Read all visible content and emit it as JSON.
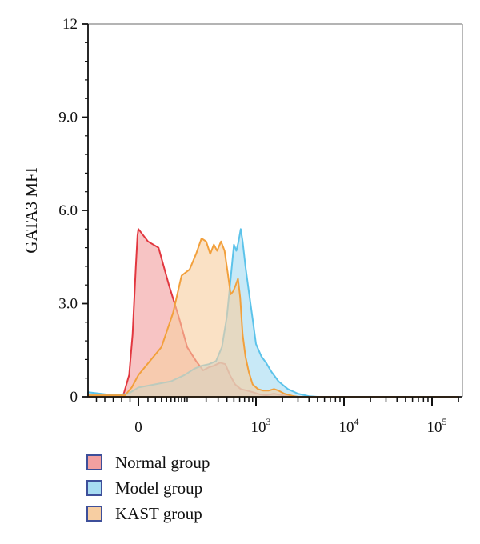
{
  "chart_data": {
    "type": "area",
    "title": "",
    "ylabel": "GATA3 MFI",
    "xlabel": "",
    "x_scale": "biexponential",
    "xlim": [
      -300,
      200000
    ],
    "ylim": [
      0,
      12
    ],
    "yticks": [
      {
        "value": 0,
        "label": "0"
      },
      {
        "value": 3,
        "label": "3.0"
      },
      {
        "value": 6,
        "label": "6.0"
      },
      {
        "value": 9,
        "label": "9.0"
      },
      {
        "value": 12,
        "label": "12"
      }
    ],
    "xticks": [
      {
        "value": 0,
        "base": "0",
        "exp": ""
      },
      {
        "value": 1000,
        "base": "10",
        "exp": "3"
      },
      {
        "value": 10000,
        "base": "10",
        "exp": "4"
      },
      {
        "value": 100000,
        "base": "10",
        "exp": "5"
      }
    ],
    "legend_position": "bottom-left",
    "series": [
      {
        "name": "Normal group",
        "fill": "#f2a0a0",
        "stroke": "#e2373f",
        "points": [
          [
            -300,
            0
          ],
          [
            -90,
            0.05
          ],
          [
            -55,
            0.7
          ],
          [
            -35,
            2.0
          ],
          [
            -15,
            4.2
          ],
          [
            -5,
            5.2
          ],
          [
            0,
            5.4
          ],
          [
            10,
            5.0
          ],
          [
            25,
            4.8
          ],
          [
            45,
            3.6
          ],
          [
            70,
            2.6
          ],
          [
            100,
            1.6
          ],
          [
            140,
            1.15
          ],
          [
            180,
            0.85
          ],
          [
            220,
            0.95
          ],
          [
            260,
            1.0
          ],
          [
            320,
            1.1
          ],
          [
            380,
            1.05
          ],
          [
            440,
            0.7
          ],
          [
            520,
            0.4
          ],
          [
            620,
            0.25
          ],
          [
            750,
            0.2
          ],
          [
            900,
            0.15
          ],
          [
            1100,
            0.08
          ],
          [
            1300,
            0.05
          ],
          [
            1600,
            0.1
          ],
          [
            1900,
            0.06
          ],
          [
            2300,
            0.02
          ],
          [
            3000,
            0.0
          ],
          [
            200000,
            0.0
          ]
        ]
      },
      {
        "name": "Model group",
        "fill": "#a7dcf2",
        "stroke": "#5cc3ea",
        "points": [
          [
            -300,
            0.15
          ],
          [
            -150,
            0.05
          ],
          [
            -60,
            0.1
          ],
          [
            0,
            0.3
          ],
          [
            50,
            0.5
          ],
          [
            90,
            0.7
          ],
          [
            130,
            0.9
          ],
          [
            170,
            1.0
          ],
          [
            220,
            1.05
          ],
          [
            280,
            1.15
          ],
          [
            340,
            1.6
          ],
          [
            400,
            2.6
          ],
          [
            450,
            3.8
          ],
          [
            500,
            4.9
          ],
          [
            540,
            4.7
          ],
          [
            580,
            5.0
          ],
          [
            620,
            5.4
          ],
          [
            660,
            5.0
          ],
          [
            720,
            4.2
          ],
          [
            800,
            3.4
          ],
          [
            900,
            2.5
          ],
          [
            1000,
            1.7
          ],
          [
            1150,
            1.3
          ],
          [
            1300,
            1.1
          ],
          [
            1500,
            0.8
          ],
          [
            1800,
            0.5
          ],
          [
            2300,
            0.25
          ],
          [
            3000,
            0.1
          ],
          [
            4000,
            0.02
          ],
          [
            5000,
            0.0
          ],
          [
            200000,
            0.0
          ]
        ]
      },
      {
        "name": "KAST group",
        "fill": "#f7cea2",
        "stroke": "#f2a03c",
        "points": [
          [
            -300,
            0.05
          ],
          [
            -80,
            0.05
          ],
          [
            -40,
            0.3
          ],
          [
            0,
            0.7
          ],
          [
            30,
            1.6
          ],
          [
            55,
            2.7
          ],
          [
            80,
            3.9
          ],
          [
            110,
            4.1
          ],
          [
            140,
            4.6
          ],
          [
            170,
            5.1
          ],
          [
            200,
            5.0
          ],
          [
            230,
            4.6
          ],
          [
            260,
            4.9
          ],
          [
            290,
            4.7
          ],
          [
            330,
            5.0
          ],
          [
            370,
            4.7
          ],
          [
            410,
            4.0
          ],
          [
            450,
            3.3
          ],
          [
            490,
            3.4
          ],
          [
            530,
            3.6
          ],
          [
            570,
            3.8
          ],
          [
            610,
            3.2
          ],
          [
            660,
            2.0
          ],
          [
            720,
            1.3
          ],
          [
            800,
            0.8
          ],
          [
            900,
            0.4
          ],
          [
            1050,
            0.25
          ],
          [
            1200,
            0.2
          ],
          [
            1400,
            0.2
          ],
          [
            1600,
            0.25
          ],
          [
            1800,
            0.2
          ],
          [
            2100,
            0.1
          ],
          [
            2600,
            0.03
          ],
          [
            3000,
            0.0
          ],
          [
            200000,
            0.0
          ]
        ]
      }
    ]
  }
}
